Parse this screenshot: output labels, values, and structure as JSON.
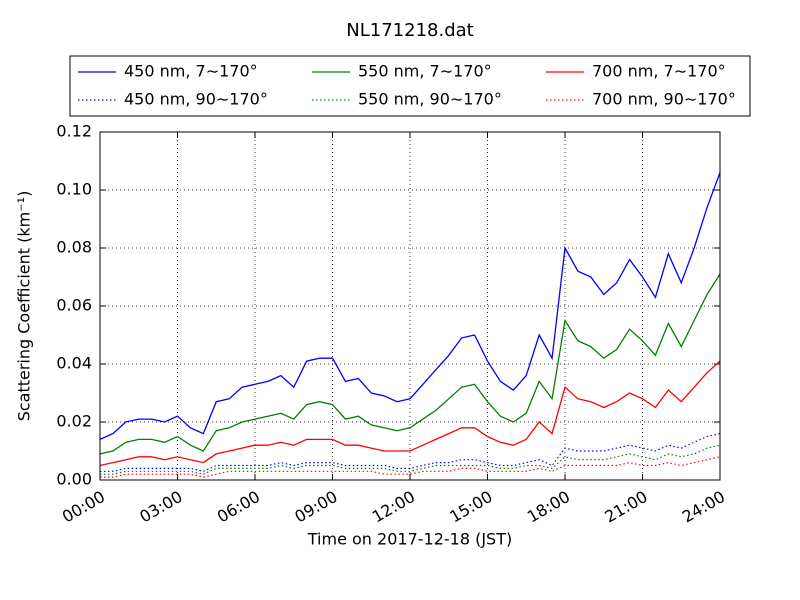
{
  "chart_data": {
    "type": "line",
    "title": "NL171218.dat",
    "xlabel": "Time on 2017-12-18 (JST)",
    "ylabel": "Scattering Coefficient (km⁻¹)",
    "x": [
      "00:00",
      "00:30",
      "01:00",
      "01:30",
      "02:00",
      "02:30",
      "03:00",
      "03:30",
      "04:00",
      "04:30",
      "05:00",
      "05:30",
      "06:00",
      "06:30",
      "07:00",
      "07:30",
      "08:00",
      "08:30",
      "09:00",
      "09:30",
      "10:00",
      "10:30",
      "11:00",
      "11:30",
      "12:00",
      "12:30",
      "13:00",
      "13:30",
      "14:00",
      "14:30",
      "15:00",
      "15:30",
      "16:00",
      "16:30",
      "17:00",
      "17:30",
      "18:00",
      "18:30",
      "19:00",
      "19:30",
      "20:00",
      "20:30",
      "21:00",
      "21:30",
      "22:00",
      "22:30",
      "23:00",
      "23:30",
      "24:00"
    ],
    "xlim": [
      "00:00",
      "24:00"
    ],
    "xticks": [
      "00:00",
      "03:00",
      "06:00",
      "09:00",
      "12:00",
      "15:00",
      "18:00",
      "21:00",
      "24:00"
    ],
    "ylim": [
      0,
      0.12
    ],
    "yticks": [
      {
        "value": 0,
        "label": "0.00"
      },
      {
        "value": 0.02,
        "label": "0.02"
      },
      {
        "value": 0.04,
        "label": "0.04"
      },
      {
        "value": 0.06,
        "label": "0.06"
      },
      {
        "value": 0.08,
        "label": "0.08"
      },
      {
        "value": 0.1,
        "label": "0.10"
      },
      {
        "value": 0.12,
        "label": "0.12"
      }
    ],
    "grid": true,
    "legend_loc": "above",
    "legend_columns": 3,
    "series": [
      {
        "name": "450 nm, 7∼170°",
        "color": "#0000ff",
        "linestyle": "solid",
        "values": [
          0.014,
          0.016,
          0.02,
          0.021,
          0.021,
          0.02,
          0.022,
          0.018,
          0.016,
          0.027,
          0.028,
          0.032,
          0.033,
          0.034,
          0.036,
          0.032,
          0.041,
          0.042,
          0.042,
          0.034,
          0.035,
          0.03,
          0.029,
          0.027,
          0.028,
          0.033,
          0.038,
          0.043,
          0.049,
          0.05,
          0.041,
          0.034,
          0.031,
          0.036,
          0.05,
          0.042,
          0.08,
          0.072,
          0.07,
          0.064,
          0.068,
          0.076,
          0.07,
          0.063,
          0.078,
          0.068,
          0.08,
          0.094,
          0.106
        ]
      },
      {
        "name": "450 nm, 90∼170°",
        "color": "#0000ff",
        "linestyle": "dotted",
        "values": [
          0.003,
          0.003,
          0.004,
          0.004,
          0.004,
          0.004,
          0.004,
          0.004,
          0.003,
          0.005,
          0.005,
          0.005,
          0.005,
          0.005,
          0.006,
          0.005,
          0.006,
          0.006,
          0.006,
          0.005,
          0.005,
          0.005,
          0.005,
          0.004,
          0.004,
          0.005,
          0.006,
          0.006,
          0.007,
          0.007,
          0.006,
          0.005,
          0.005,
          0.006,
          0.007,
          0.005,
          0.011,
          0.01,
          0.01,
          0.01,
          0.011,
          0.012,
          0.011,
          0.01,
          0.012,
          0.011,
          0.013,
          0.015,
          0.016
        ]
      },
      {
        "name": "550 nm, 7∼170°",
        "color": "#008000",
        "linestyle": "solid",
        "values": [
          0.009,
          0.01,
          0.013,
          0.014,
          0.014,
          0.013,
          0.015,
          0.012,
          0.01,
          0.017,
          0.018,
          0.02,
          0.021,
          0.022,
          0.023,
          0.021,
          0.026,
          0.027,
          0.026,
          0.021,
          0.022,
          0.019,
          0.018,
          0.017,
          0.018,
          0.021,
          0.024,
          0.028,
          0.032,
          0.033,
          0.027,
          0.022,
          0.02,
          0.023,
          0.034,
          0.028,
          0.055,
          0.048,
          0.046,
          0.042,
          0.045,
          0.052,
          0.048,
          0.043,
          0.054,
          0.046,
          0.055,
          0.064,
          0.071
        ]
      },
      {
        "name": "550 nm, 90∼170°",
        "color": "#008000",
        "linestyle": "dotted",
        "values": [
          0.002,
          0.002,
          0.003,
          0.003,
          0.003,
          0.003,
          0.003,
          0.003,
          0.002,
          0.004,
          0.004,
          0.004,
          0.004,
          0.004,
          0.005,
          0.004,
          0.005,
          0.005,
          0.005,
          0.004,
          0.004,
          0.004,
          0.004,
          0.003,
          0.003,
          0.004,
          0.005,
          0.005,
          0.005,
          0.005,
          0.005,
          0.004,
          0.004,
          0.005,
          0.005,
          0.004,
          0.008,
          0.007,
          0.007,
          0.007,
          0.008,
          0.009,
          0.008,
          0.007,
          0.009,
          0.008,
          0.009,
          0.011,
          0.012
        ]
      },
      {
        "name": "700 nm, 7∼170°",
        "color": "#ff0000",
        "linestyle": "solid",
        "values": [
          0.005,
          0.006,
          0.007,
          0.008,
          0.008,
          0.007,
          0.008,
          0.007,
          0.006,
          0.009,
          0.01,
          0.011,
          0.012,
          0.012,
          0.013,
          0.012,
          0.014,
          0.014,
          0.014,
          0.012,
          0.012,
          0.011,
          0.01,
          0.01,
          0.01,
          0.012,
          0.014,
          0.016,
          0.018,
          0.018,
          0.015,
          0.013,
          0.012,
          0.014,
          0.02,
          0.016,
          0.032,
          0.028,
          0.027,
          0.025,
          0.027,
          0.03,
          0.028,
          0.025,
          0.031,
          0.027,
          0.032,
          0.037,
          0.041
        ]
      },
      {
        "name": "700 nm, 90∼170°",
        "color": "#ff0000",
        "linestyle": "dotted",
        "values": [
          0.001,
          0.001,
          0.002,
          0.002,
          0.002,
          0.002,
          0.002,
          0.002,
          0.001,
          0.002,
          0.003,
          0.003,
          0.003,
          0.003,
          0.003,
          0.003,
          0.003,
          0.003,
          0.003,
          0.003,
          0.003,
          0.003,
          0.002,
          0.002,
          0.002,
          0.003,
          0.003,
          0.003,
          0.004,
          0.004,
          0.003,
          0.003,
          0.003,
          0.003,
          0.004,
          0.003,
          0.005,
          0.005,
          0.005,
          0.005,
          0.005,
          0.006,
          0.005,
          0.005,
          0.006,
          0.005,
          0.006,
          0.007,
          0.008
        ]
      }
    ]
  }
}
